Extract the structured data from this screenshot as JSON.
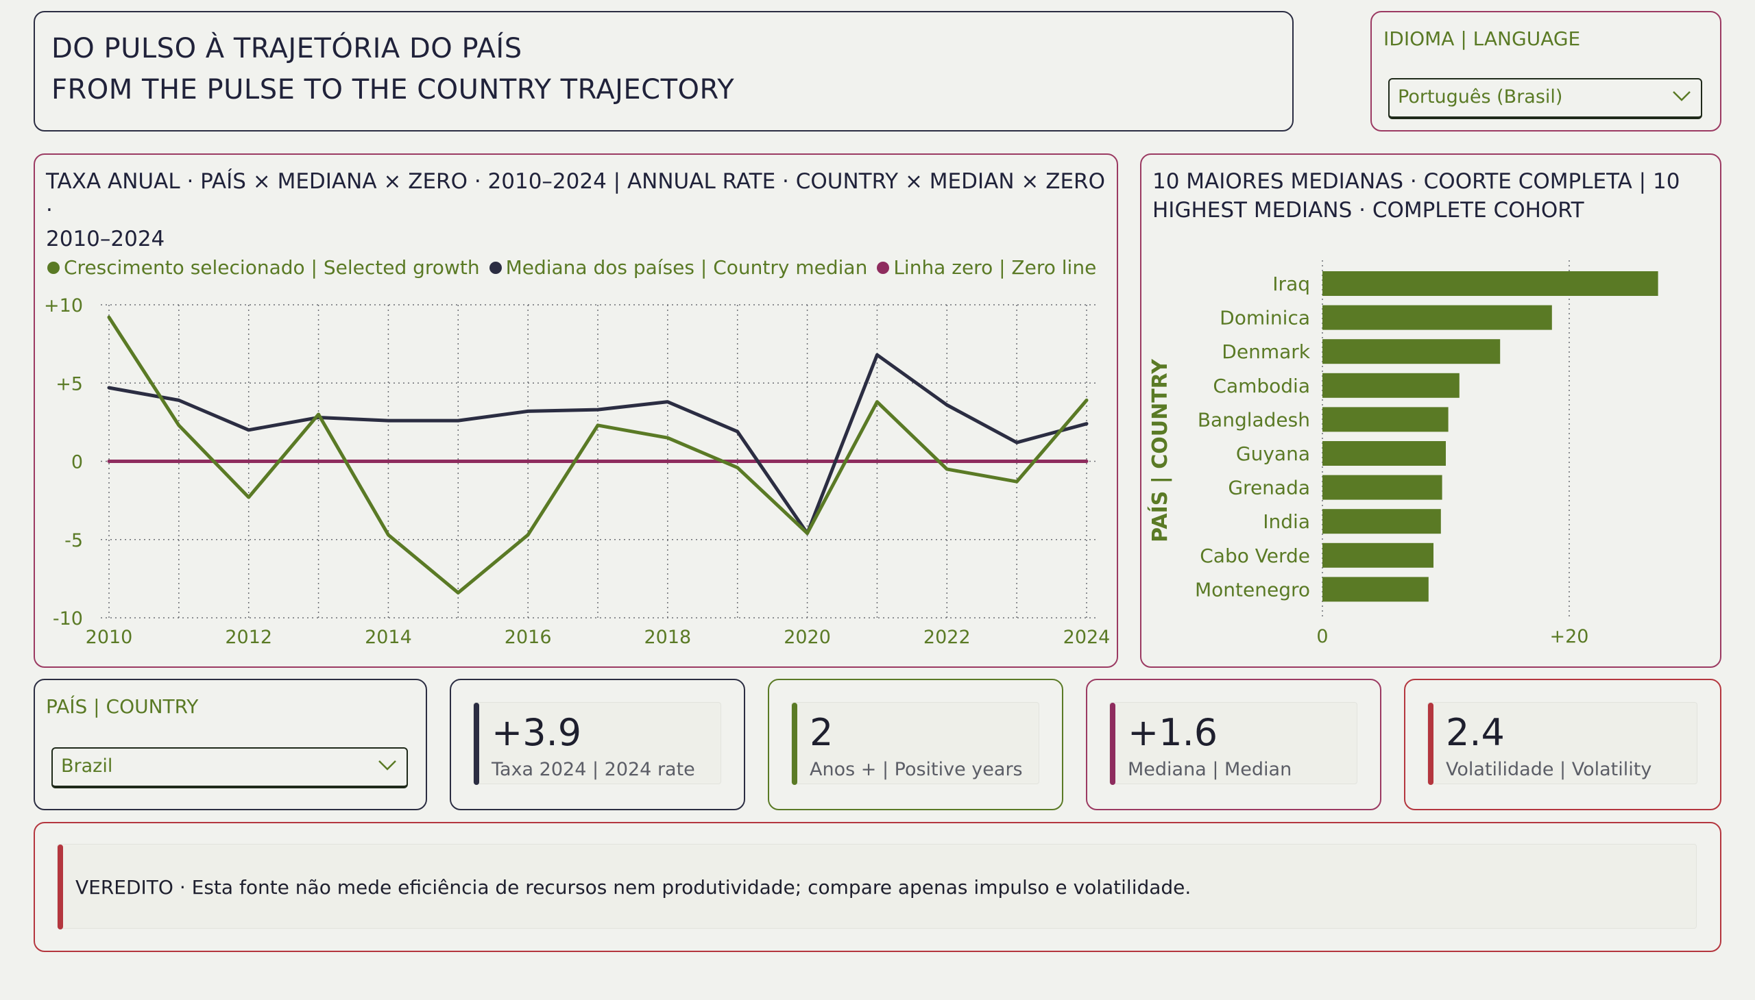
{
  "header": {
    "title_pt": "DO PULSO À TRAJETÓRIA DO PAÍS",
    "title_en": "FROM THE PULSE TO THE COUNTRY TRAJECTORY"
  },
  "language_slicer": {
    "label": "IDIOMA | LANGUAGE",
    "selected": "Português (Brasil)"
  },
  "line_chart": {
    "title_line1": "TAXA ANUAL · PAÍS × MEDIANA × ZERO · 2010–2024 | ANNUAL RATE · COUNTRY × MEDIAN × ZERO ·",
    "title_line2": "2010–2024",
    "legend": [
      {
        "label": "Crescimento selecionado | Selected growth",
        "color": "#5a7a25"
      },
      {
        "label": "Mediana dos países | Country median",
        "color": "#2b2d42"
      },
      {
        "label": "Linha zero | Zero line",
        "color": "#8e2c5e"
      }
    ]
  },
  "bar_chart": {
    "title_line1": "10 MAIORES MEDIANAS · COORTE COMPLETA | 10",
    "title_line2": "HIGHEST MEDIANS · COMPLETE COHORT",
    "axis_label": "PAÍS | COUNTRY"
  },
  "chart_data": [
    {
      "type": "line",
      "x": [
        2010,
        2011,
        2012,
        2013,
        2014,
        2015,
        2016,
        2017,
        2018,
        2019,
        2020,
        2021,
        2022,
        2023,
        2024
      ],
      "series": [
        {
          "name": "Crescimento selecionado | Selected growth",
          "color": "#5a7a25",
          "values": [
            9.2,
            2.3,
            -2.3,
            3.0,
            -4.7,
            -8.4,
            -4.7,
            2.3,
            1.5,
            -0.4,
            -4.6,
            3.8,
            -0.5,
            -1.3,
            3.9
          ]
        },
        {
          "name": "Mediana dos países | Country median",
          "color": "#2b2d42",
          "values": [
            4.7,
            3.9,
            2.0,
            2.8,
            2.6,
            2.6,
            3.2,
            3.3,
            3.8,
            1.9,
            -4.6,
            6.8,
            3.6,
            1.2,
            2.4
          ]
        },
        {
          "name": "Linha zero | Zero line",
          "color": "#8e2c5e",
          "values": [
            0,
            0,
            0,
            0,
            0,
            0,
            0,
            0,
            0,
            0,
            0,
            0,
            0,
            0,
            0
          ]
        }
      ],
      "ylim": [
        -10,
        10
      ],
      "yticks": [
        10,
        5,
        0,
        -5,
        -10
      ],
      "ytick_labels": [
        "+10",
        "+5",
        "0",
        "-5",
        "-10"
      ],
      "xticks": [
        2010,
        2012,
        2014,
        2016,
        2018,
        2020,
        2022,
        2024
      ],
      "grid": true,
      "legend_position": "top"
    },
    {
      "type": "bar",
      "orientation": "horizontal",
      "categories": [
        "Iraq",
        "Dominica",
        "Denmark",
        "Cambodia",
        "Bangladesh",
        "Guyana",
        "Grenada",
        "India",
        "Cabo Verde",
        "Montenegro"
      ],
      "values": [
        27.2,
        18.6,
        14.4,
        11.1,
        10.2,
        10.0,
        9.7,
        9.6,
        9.0,
        8.6
      ],
      "color": "#5a7a25",
      "xlim": [
        0,
        30
      ],
      "xticks": [
        0,
        20
      ],
      "xtick_labels": [
        "0",
        "+20"
      ],
      "ylabel": "PAÍS | COUNTRY",
      "grid": true
    }
  ],
  "country_slicer": {
    "label": "PAÍS | COUNTRY",
    "selected": "Brazil"
  },
  "kpis": [
    {
      "value": "+3.9",
      "label": "Taxa 2024 | 2024 rate",
      "accent": "#2b2d42"
    },
    {
      "value": "2",
      "label": "Anos + | Positive years",
      "accent": "#5a7a25"
    },
    {
      "value": "+1.6",
      "label": "Mediana | Median",
      "accent": "#8e2c5e"
    },
    {
      "value": "2.4",
      "label": "Volatilidade | Volatility",
      "accent": "#b4363e"
    }
  ],
  "verdict": {
    "text": "VEREDITO · Esta fonte não mede eficiência de recursos nem produtividade; compare apenas impulso e volatilidade."
  }
}
